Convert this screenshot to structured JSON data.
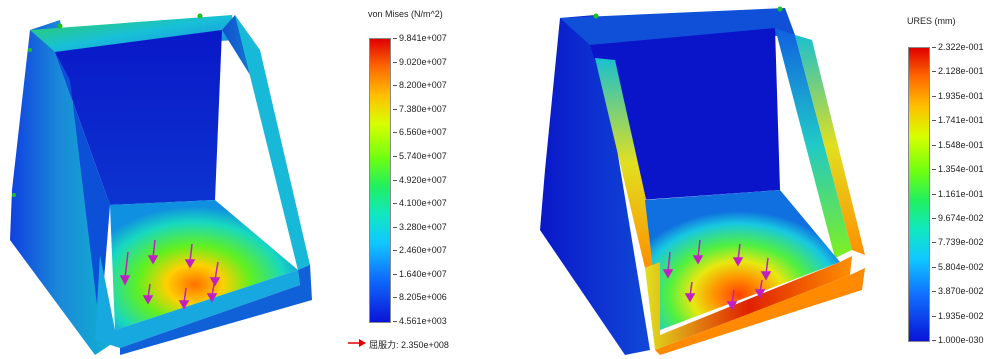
{
  "left_plot": {
    "legend_title": "von Mises (N/m^2)",
    "ticks": [
      "9.841e+007",
      "9.020e+007",
      "8.200e+007",
      "7.380e+007",
      "6.560e+007",
      "5.740e+007",
      "4.920e+007",
      "4.100e+007",
      "3.280e+007",
      "2.460e+007",
      "1.640e+007",
      "8.205e+006",
      "4.561e+003"
    ],
    "yield_label": "屈服力:",
    "yield_value": "2.350e+008",
    "yield_arrow_color": "#e00000"
  },
  "right_plot": {
    "legend_title": "URES (mm)",
    "ticks": [
      "2.322e-001",
      "2.128e-001",
      "1.935e-001",
      "1.741e-001",
      "1.548e-001",
      "1.354e-001",
      "1.161e-001",
      "9.674e-002",
      "7.739e-002",
      "5.804e-002",
      "3.870e-002",
      "1.935e-002",
      "1.000e-030"
    ]
  },
  "colors": {
    "max": "#e00000",
    "mid": "#20f060",
    "min": "#0a14d8",
    "load_arrow": "#c020c0"
  }
}
